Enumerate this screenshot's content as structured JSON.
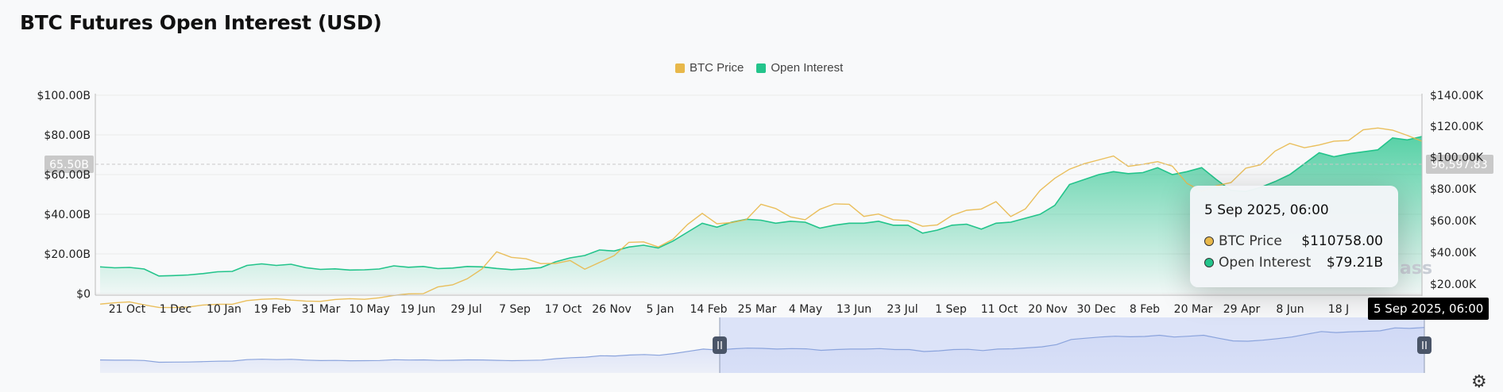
{
  "title": "BTC Futures Open Interest (USD)",
  "legend": [
    {
      "label": "BTC Price",
      "color": "#e8b84a"
    },
    {
      "label": "Open Interest",
      "color": "#23c48b"
    }
  ],
  "crosshair": {
    "left_value": "65.50B",
    "right_value": "96,597.83",
    "x_label": "5 Sep 2025, 06:00"
  },
  "tooltip": {
    "date": "5 Sep 2025, 06:00",
    "rows": [
      {
        "label": "BTC Price",
        "value": "$110758.00",
        "color": "#e8b84a"
      },
      {
        "label": "Open Interest",
        "value": "$79.21B",
        "color": "#23c48b"
      }
    ]
  },
  "watermark": "ass",
  "settings_icon": "gear-icon",
  "chart_data": {
    "type": "area",
    "title": "BTC Futures Open Interest (USD)",
    "x_ticks": [
      "21 Oct",
      "1 Dec",
      "10 Jan",
      "19 Feb",
      "31 Mar",
      "10 May",
      "19 Jun",
      "29 Jul",
      "7 Sep",
      "17 Oct",
      "26 Nov",
      "5 Jan",
      "14 Feb",
      "25 Mar",
      "4 May",
      "13 Jun",
      "23 Jul",
      "1 Sep",
      "11 Oct",
      "20 Nov",
      "30 Dec",
      "8 Feb",
      "20 Mar",
      "29 Apr",
      "8 Jun",
      "18 J"
    ],
    "y_left": {
      "ticks": [
        "$0",
        "$20.00B",
        "$40.00B",
        "$60.00B",
        "$80.00B",
        "$100.00B"
      ],
      "range": [
        0,
        100
      ]
    },
    "y_right": {
      "ticks": [
        "$20.00K",
        "$40.00K",
        "$60.00K",
        "$80.00K",
        "$100.00K",
        "$120.00K",
        "$140.00K"
      ],
      "range": [
        0,
        140000
      ]
    },
    "grid": true,
    "legend_position": "top-center",
    "series": [
      {
        "name": "Open Interest",
        "axis": "left",
        "unit": "B USD",
        "color": "#23c48b",
        "values": [
          13.5,
          13.0,
          13.2,
          12.4,
          8.9,
          9.1,
          9.4,
          10.1,
          11.0,
          11.2,
          14.2,
          15.0,
          14.2,
          14.8,
          13.1,
          12.2,
          12.5,
          11.9,
          12.0,
          12.4,
          14.0,
          13.3,
          13.7,
          12.6,
          12.9,
          13.7,
          13.5,
          12.7,
          12.1,
          12.5,
          13.1,
          16.0,
          18.0,
          19.2,
          22.0,
          21.5,
          23.5,
          24.4,
          23.0,
          26.5,
          31.0,
          35.5,
          33.5,
          36.0,
          37.5,
          37.0,
          35.5,
          36.5,
          36.0,
          33.0,
          34.5,
          35.5,
          35.5,
          36.5,
          34.5,
          34.5,
          30.5,
          32.0,
          34.5,
          35.0,
          32.5,
          35.5,
          36.0,
          38.0,
          40.0,
          44.5,
          55.0,
          57.5,
          60.0,
          61.5,
          60.5,
          61.0,
          63.5,
          60.0,
          61.5,
          63.5,
          57.5,
          52.0,
          51.5,
          53.5,
          56.5,
          60.0,
          65.5,
          71.0,
          69.0,
          70.5,
          71.5,
          72.5,
          78.5,
          77.5,
          79.21
        ]
      },
      {
        "name": "BTC Price",
        "axis": "right",
        "unit": "USD",
        "color": "#e8b84a",
        "values": [
          7300,
          8100,
          8700,
          6800,
          5200,
          5100,
          5400,
          6700,
          7200,
          7200,
          9500,
          10300,
          10700,
          9800,
          9200,
          9000,
          10200,
          10700,
          10300,
          11300,
          12800,
          13800,
          13900,
          18200,
          19500,
          23400,
          29600,
          40500,
          37000,
          36100,
          33000,
          33100,
          35000,
          29500,
          33700,
          38100,
          46500,
          46800,
          43600,
          48500,
          57900,
          64900,
          58300,
          59100,
          61000,
          70700,
          68000,
          62700,
          60900,
          67500,
          71000,
          70700,
          63000,
          64500,
          60900,
          60300,
          56700,
          57600,
          63600,
          66900,
          67700,
          72400,
          62900,
          67800,
          79500,
          87200,
          93000,
          96500,
          98900,
          101400,
          94800,
          96100,
          97800,
          95000,
          84000,
          79000,
          82500,
          84500,
          93600,
          95800,
          104500,
          109400,
          106600,
          108400,
          110800,
          111200,
          118000,
          119200,
          117800,
          114500,
          110758
        ]
      }
    ]
  }
}
